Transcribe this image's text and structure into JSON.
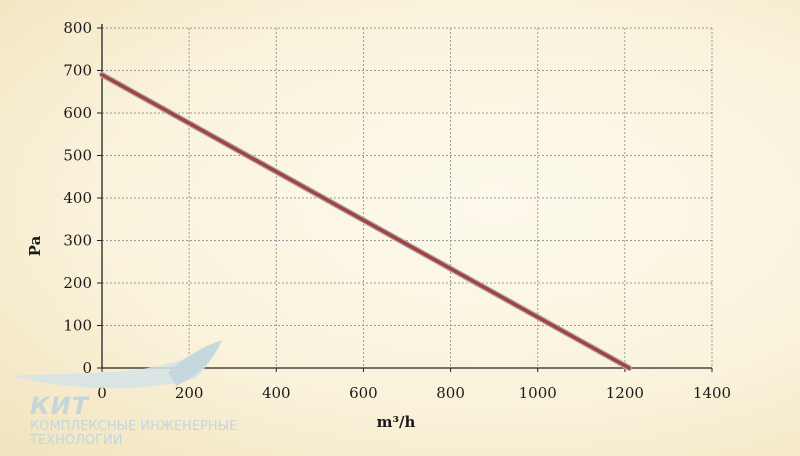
{
  "chart_data": {
    "type": "line",
    "xlabel": "m³/h",
    "ylabel": "Pa",
    "xlim": [
      0,
      1400
    ],
    "ylim": [
      0,
      800
    ],
    "x_ticks": [
      0,
      200,
      400,
      600,
      800,
      1000,
      1200,
      1400
    ],
    "y_ticks": [
      0,
      100,
      200,
      300,
      400,
      500,
      600,
      700,
      800
    ],
    "grid": true,
    "series": [
      {
        "x": [
          0,
          1210
        ],
        "y": [
          690,
          0
        ],
        "color": "#a0443e"
      }
    ]
  },
  "logo": {
    "brand": "КИТ",
    "line1": "КОМПЛЕКСНЫЕ ИНЖЕНЕРНЫЕ",
    "line2": "ТЕХНОЛОГИИ"
  }
}
